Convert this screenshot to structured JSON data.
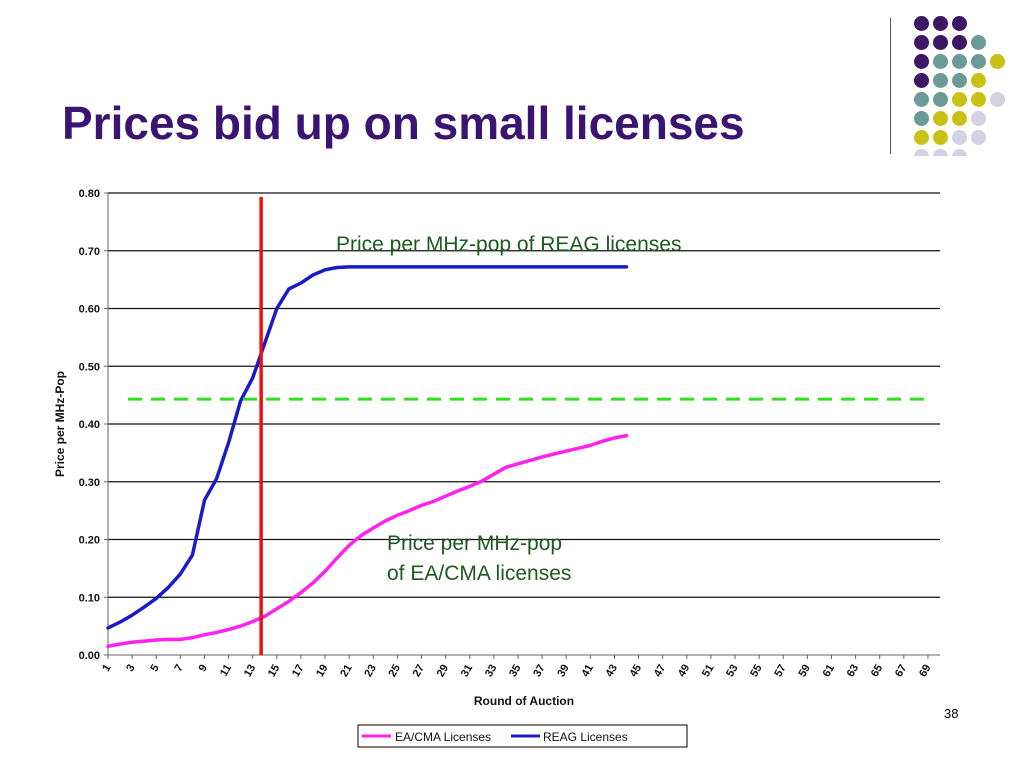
{
  "slide": {
    "title": "Prices bid up on small licenses",
    "page_number": "38"
  },
  "decoration": {
    "dot_colors": {
      "purple": "#3d1763",
      "teal": "#6c9b97",
      "yellow": "#c9c214",
      "lavender": "#d4d1e3"
    },
    "dot_rows": [
      [
        "",
        "purple",
        "purple",
        "purple"
      ],
      [
        "",
        "purple",
        "purple",
        "purple",
        "teal"
      ],
      [
        "",
        "purple",
        "teal",
        "teal",
        "teal",
        "yellow"
      ],
      [
        "",
        "purple",
        "teal",
        "teal",
        "yellow"
      ],
      [
        "",
        "teal",
        "teal",
        "yellow",
        "yellow",
        "lavender"
      ],
      [
        "",
        "teal",
        "yellow",
        "yellow",
        "lavender"
      ],
      [
        "",
        "yellow",
        "yellow",
        "lavender",
        "lavender"
      ],
      [
        "",
        "lavender",
        "lavender",
        "lavender"
      ]
    ]
  },
  "chart_data": {
    "type": "line",
    "xlabel": "Round of Auction",
    "ylabel": "Price per MHz-Pop",
    "ylim": [
      0,
      0.8
    ],
    "yticks": [
      "0.00",
      "0.10",
      "0.20",
      "0.30",
      "0.40",
      "0.50",
      "0.60",
      "0.70",
      "0.80"
    ],
    "xticks": [
      "1",
      "3",
      "5",
      "7",
      "9",
      "11",
      "13",
      "15",
      "17",
      "19",
      "21",
      "23",
      "25",
      "27",
      "29",
      "31",
      "33",
      "35",
      "37",
      "39",
      "41",
      "43",
      "45",
      "47",
      "49",
      "51",
      "53",
      "55",
      "57",
      "59",
      "61",
      "63",
      "65",
      "67",
      "69"
    ],
    "xlim": [
      1,
      70
    ],
    "grid": true,
    "legend_position": "bottom",
    "series": [
      {
        "name": "EA/CMA Licenses",
        "color": "#ff22ee",
        "x": [
          1,
          2,
          3,
          4,
          5,
          6,
          7,
          8,
          9,
          10,
          11,
          12,
          13,
          14,
          15,
          16,
          17,
          18,
          19,
          20,
          21,
          22,
          23,
          24,
          25,
          26,
          27,
          28,
          29,
          30,
          31,
          32,
          33,
          34,
          35,
          36,
          37,
          38,
          39,
          40,
          41,
          42,
          43,
          44
        ],
        "values": [
          0.015,
          0.019,
          0.022,
          0.024,
          0.026,
          0.027,
          0.027,
          0.03,
          0.035,
          0.039,
          0.044,
          0.05,
          0.058,
          0.067,
          0.08,
          0.093,
          0.108,
          0.125,
          0.145,
          0.168,
          0.19,
          0.207,
          0.22,
          0.232,
          0.242,
          0.25,
          0.259,
          0.266,
          0.275,
          0.284,
          0.292,
          0.301,
          0.313,
          0.325,
          0.331,
          0.337,
          0.343,
          0.348,
          0.353,
          0.358,
          0.363,
          0.37,
          0.376,
          0.38
        ]
      },
      {
        "name": "REAG Licenses",
        "color": "#1a1ac8",
        "x": [
          1,
          2,
          3,
          4,
          5,
          6,
          7,
          8,
          9,
          10,
          11,
          12,
          13,
          14,
          15,
          16,
          17,
          18,
          19,
          20,
          21,
          22,
          23,
          24,
          25,
          26,
          27,
          28,
          29,
          30,
          31,
          32,
          33,
          34,
          35,
          36,
          37,
          38,
          39,
          40,
          41,
          42,
          43,
          44
        ],
        "values": [
          0.047,
          0.057,
          0.069,
          0.083,
          0.098,
          0.117,
          0.14,
          0.173,
          0.268,
          0.305,
          0.368,
          0.44,
          0.48,
          0.54,
          0.6,
          0.634,
          0.644,
          0.658,
          0.667,
          0.671,
          0.672,
          0.672,
          0.672,
          0.672,
          0.672,
          0.672,
          0.672,
          0.672,
          0.672,
          0.672,
          0.672,
          0.672,
          0.672,
          0.672,
          0.672,
          0.672,
          0.672,
          0.672,
          0.672,
          0.672,
          0.672,
          0.672,
          0.672,
          0.672
        ]
      }
    ],
    "reference_lines": [
      {
        "orientation": "vertical",
        "x": 13.7,
        "color": "#ee1111"
      },
      {
        "orientation": "horizontal",
        "y": 0.443,
        "color": "#33dd22",
        "dashed": true
      }
    ],
    "annotations": {
      "reag": "Price per MHz-pop of REAG licenses",
      "ea_line1": "Price per MHz-pop",
      "ea_line2": "of EA/CMA licenses"
    }
  }
}
